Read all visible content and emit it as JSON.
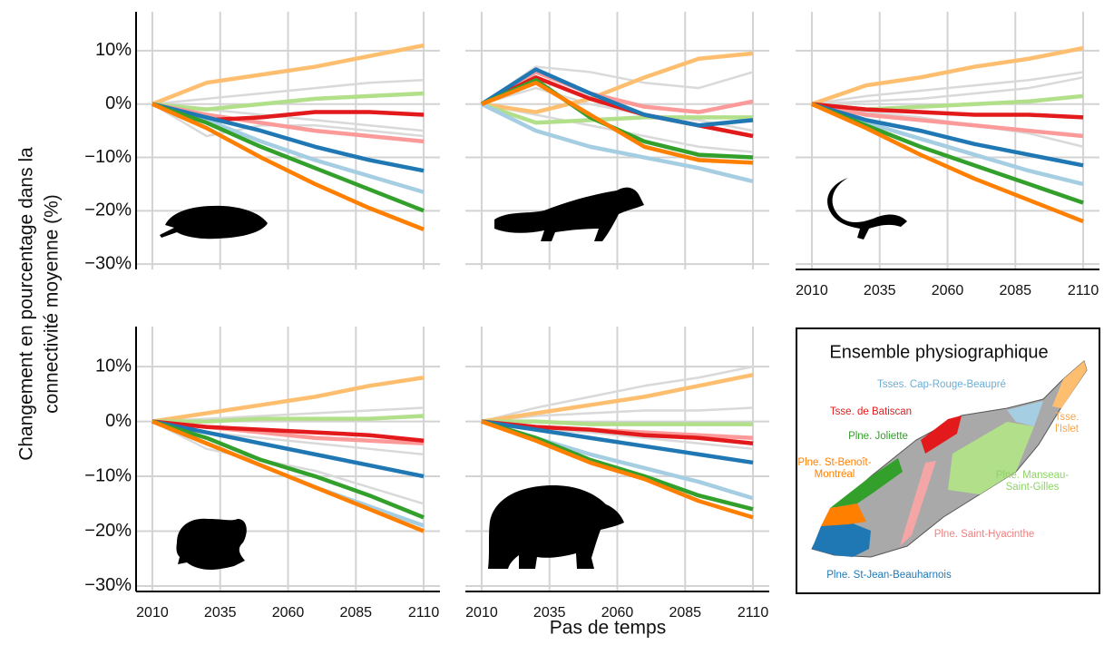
{
  "figure": {
    "ylabel": [
      "Changement en pourcentage dans la",
      "connectivité moyenne (%)"
    ],
    "xlabel": "Pas de temps"
  },
  "legend": {
    "title": "Ensemble physiographique",
    "entries": [
      {
        "name": [
          "Tsses. Cap-Rouge-Beaupré"
        ],
        "color": "#6baed6"
      },
      {
        "name": [
          "Tsse. de Batiscan"
        ],
        "color": "#e31a1c"
      },
      {
        "name": [
          "Tsse.",
          "l'Islet"
        ],
        "color": "#f5a64a"
      },
      {
        "name": [
          "Plne. Joliette"
        ],
        "color": "#33a02c"
      },
      {
        "name": [
          "Plne. St-Benoît-",
          "Montréal"
        ],
        "color": "#ff7f00"
      },
      {
        "name": [
          "Plne. Manseau-",
          "Saint-Gilles"
        ],
        "color": "#8fd36a"
      },
      {
        "name": [
          "Plne. Saint-Hyacinthe"
        ],
        "color": "#f08080"
      },
      {
        "name": [
          "Plne. St-Jean-Beauharnois"
        ],
        "color": "#1f78b4"
      }
    ]
  },
  "chart_data": [
    {
      "type": "line",
      "x": [
        2010,
        2030,
        2050,
        2070,
        2090,
        2110
      ],
      "xlim": [
        2004,
        2116
      ],
      "ylim": [
        -31,
        17.3
      ],
      "xticks": [
        2010,
        2035,
        2060,
        2085,
        2110
      ],
      "yticks": [
        {
          "value": -30,
          "label": "−30%"
        },
        {
          "value": -20,
          "label": "−20%"
        },
        {
          "value": -10,
          "label": "−10%"
        },
        {
          "value": 0,
          "label": "0%"
        },
        {
          "value": 10,
          "label": "10%"
        }
      ],
      "grid": true,
      "show_xtick_labels": false,
      "show_ytick_labels": true,
      "series": [
        {
          "color": "#d9d9d9",
          "values": [
            0,
            1,
            2,
            3,
            4,
            4.5
          ]
        },
        {
          "color": "#d9d9d9",
          "values": [
            0,
            -1,
            -2,
            -3,
            -4,
            -5
          ]
        },
        {
          "color": "#d9d9d9",
          "values": [
            0,
            -6,
            -4,
            -4,
            -5,
            -6
          ]
        },
        {
          "color": "#fdbf6f",
          "values": [
            0,
            4,
            5.5,
            7,
            9,
            11
          ]
        },
        {
          "color": "#b2df8a",
          "values": [
            0,
            -1,
            0,
            1,
            1.5,
            2
          ]
        },
        {
          "color": "#fb9a99",
          "values": [
            0,
            -2,
            -3.5,
            -5,
            -6,
            -7
          ]
        },
        {
          "color": "#e31a1c",
          "values": [
            0,
            -3,
            -2.5,
            -1.5,
            -1.5,
            -2
          ]
        },
        {
          "color": "#a6cee3",
          "values": [
            0,
            -3,
            -7,
            -10.5,
            -13.5,
            -16.5
          ]
        },
        {
          "color": "#1f78b4",
          "values": [
            0,
            -2.5,
            -5,
            -8,
            -10.5,
            -12.5
          ]
        },
        {
          "color": "#33a02c",
          "values": [
            0,
            -3.5,
            -8,
            -12,
            -16,
            -20
          ]
        },
        {
          "color": "#ff7f00",
          "values": [
            0,
            -4.5,
            -10,
            -15,
            -19.5,
            -23.5
          ]
        }
      ]
    },
    {
      "type": "line",
      "x": [
        2010,
        2030,
        2050,
        2070,
        2090,
        2110
      ],
      "xlim": [
        2004,
        2116
      ],
      "ylim": [
        -31,
        17.3
      ],
      "xticks": [
        2010,
        2035,
        2060,
        2085,
        2110
      ],
      "yticks": [
        {
          "value": -30,
          "label": "−30%"
        },
        {
          "value": -20,
          "label": "−20%"
        },
        {
          "value": -10,
          "label": "−10%"
        },
        {
          "value": 0,
          "label": "0%"
        },
        {
          "value": 10,
          "label": "10%"
        }
      ],
      "grid": true,
      "show_xtick_labels": false,
      "show_ytick_labels": false,
      "series": [
        {
          "color": "#d9d9d9",
          "values": [
            0,
            7,
            6,
            4,
            3,
            6
          ]
        },
        {
          "color": "#d9d9d9",
          "values": [
            0,
            3,
            0,
            -2,
            -3,
            -5
          ]
        },
        {
          "color": "#d9d9d9",
          "values": [
            0,
            -2,
            -4,
            -6,
            -8,
            -9
          ]
        },
        {
          "color": "#fdbf6f",
          "values": [
            0,
            -1.5,
            1,
            5,
            8.5,
            9.5
          ]
        },
        {
          "color": "#b2df8a",
          "values": [
            0,
            -3.5,
            -3,
            -2.5,
            -2.5,
            -2.5
          ]
        },
        {
          "color": "#fb9a99",
          "values": [
            0,
            6,
            2,
            -0.5,
            -1.5,
            0.5
          ]
        },
        {
          "color": "#e31a1c",
          "values": [
            0,
            5,
            1,
            -2,
            -4,
            -6
          ]
        },
        {
          "color": "#a6cee3",
          "values": [
            0,
            -5,
            -8,
            -10,
            -12,
            -14.5
          ]
        },
        {
          "color": "#1f78b4",
          "values": [
            0,
            6.5,
            2,
            -2,
            -4,
            -3
          ]
        },
        {
          "color": "#33a02c",
          "values": [
            0,
            4.5,
            -2.5,
            -7,
            -9.5,
            -10
          ]
        },
        {
          "color": "#ff7f00",
          "values": [
            0,
            4,
            -2,
            -8,
            -10.5,
            -11
          ]
        }
      ]
    },
    {
      "type": "line",
      "x": [
        2010,
        2030,
        2050,
        2070,
        2090,
        2110
      ],
      "xlim": [
        2004,
        2116
      ],
      "ylim": [
        -31,
        17.3
      ],
      "xticks": [
        2010,
        2035,
        2060,
        2085,
        2110
      ],
      "yticks": [
        {
          "value": -30,
          "label": "−30%"
        },
        {
          "value": -20,
          "label": "−20%"
        },
        {
          "value": -10,
          "label": "−10%"
        },
        {
          "value": 0,
          "label": "0%"
        },
        {
          "value": 10,
          "label": "10%"
        }
      ],
      "grid": true,
      "show_xtick_labels": true,
      "show_ytick_labels": false,
      "series": [
        {
          "color": "#d9d9d9",
          "values": [
            0,
            1.5,
            2.5,
            3.5,
            4.5,
            6
          ]
        },
        {
          "color": "#d9d9d9",
          "values": [
            0,
            -1.5,
            -2.5,
            -4,
            -5.5,
            -8
          ]
        },
        {
          "color": "#d9d9d9",
          "values": [
            0,
            0.5,
            1,
            2,
            3,
            5
          ]
        },
        {
          "color": "#fdbf6f",
          "values": [
            0,
            3.5,
            5,
            7,
            8.5,
            10.5
          ]
        },
        {
          "color": "#b2df8a",
          "values": [
            0,
            -1,
            -0.5,
            0,
            0.5,
            1.5
          ]
        },
        {
          "color": "#fb9a99",
          "values": [
            0,
            -2,
            -3,
            -4,
            -5,
            -6
          ]
        },
        {
          "color": "#e31a1c",
          "values": [
            0,
            -1,
            -1.5,
            -2,
            -2,
            -2.5
          ]
        },
        {
          "color": "#a6cee3",
          "values": [
            0,
            -3.5,
            -6.5,
            -9.5,
            -12.5,
            -15
          ]
        },
        {
          "color": "#1f78b4",
          "values": [
            0,
            -3,
            -5,
            -7.5,
            -9.5,
            -11.5
          ]
        },
        {
          "color": "#33a02c",
          "values": [
            0,
            -4,
            -8,
            -11.5,
            -15,
            -18.5
          ]
        },
        {
          "color": "#ff7f00",
          "values": [
            0,
            -4.5,
            -9.5,
            -14,
            -18,
            -22
          ]
        }
      ]
    },
    {
      "type": "line",
      "x": [
        2010,
        2030,
        2050,
        2070,
        2090,
        2110
      ],
      "xlim": [
        2004,
        2116
      ],
      "ylim": [
        -31,
        17.3
      ],
      "xticks": [
        2010,
        2035,
        2060,
        2085,
        2110
      ],
      "yticks": [
        {
          "value": -30,
          "label": "−30%"
        },
        {
          "value": -20,
          "label": "−20%"
        },
        {
          "value": -10,
          "label": "−10%"
        },
        {
          "value": 0,
          "label": "0%"
        },
        {
          "value": 10,
          "label": "10%"
        }
      ],
      "grid": true,
      "show_xtick_labels": true,
      "show_ytick_labels": true,
      "series": [
        {
          "color": "#d9d9d9",
          "values": [
            0,
            0.5,
            1,
            1.5,
            2,
            2.5
          ]
        },
        {
          "color": "#d9d9d9",
          "values": [
            0,
            -2,
            -3,
            -4,
            -5,
            -6
          ]
        },
        {
          "color": "#d9d9d9",
          "values": [
            0,
            -5,
            -7,
            -9,
            -12,
            -15
          ]
        },
        {
          "color": "#fdbf6f",
          "values": [
            0,
            1.5,
            3,
            4.5,
            6.5,
            8
          ]
        },
        {
          "color": "#b2df8a",
          "values": [
            0,
            0,
            0.5,
            0.5,
            0.5,
            1
          ]
        },
        {
          "color": "#fb9a99",
          "values": [
            0,
            -1,
            -2,
            -3,
            -3.5,
            -4
          ]
        },
        {
          "color": "#e31a1c",
          "values": [
            0,
            -1,
            -1.5,
            -2,
            -2.5,
            -3.5
          ]
        },
        {
          "color": "#a6cee3",
          "values": [
            0,
            -4,
            -8,
            -12,
            -15.5,
            -19
          ]
        },
        {
          "color": "#1f78b4",
          "values": [
            0,
            -2,
            -4,
            -6,
            -8,
            -10
          ]
        },
        {
          "color": "#33a02c",
          "values": [
            0,
            -3,
            -7,
            -10,
            -13.5,
            -17.5
          ]
        },
        {
          "color": "#ff7f00",
          "values": [
            0,
            -4,
            -8,
            -12,
            -16,
            -20
          ]
        }
      ]
    },
    {
      "type": "line",
      "x": [
        2010,
        2030,
        2050,
        2070,
        2090,
        2110
      ],
      "xlim": [
        2004,
        2116
      ],
      "ylim": [
        -31,
        17.3
      ],
      "xticks": [
        2010,
        2035,
        2060,
        2085,
        2110
      ],
      "yticks": [
        {
          "value": -30,
          "label": "−30%"
        },
        {
          "value": -20,
          "label": "−20%"
        },
        {
          "value": -10,
          "label": "−10%"
        },
        {
          "value": 0,
          "label": "0%"
        },
        {
          "value": 10,
          "label": "10%"
        }
      ],
      "grid": true,
      "show_xtick_labels": true,
      "show_ytick_labels": false,
      "series": [
        {
          "color": "#d9d9d9",
          "values": [
            0,
            2.5,
            4.5,
            6.5,
            8,
            10
          ]
        },
        {
          "color": "#d9d9d9",
          "values": [
            0,
            1,
            1.5,
            2,
            2,
            2.5
          ]
        },
        {
          "color": "#d9d9d9",
          "values": [
            0,
            -1.5,
            -2,
            -3,
            -4,
            -5
          ]
        },
        {
          "color": "#fdbf6f",
          "values": [
            0,
            1.5,
            3,
            4.5,
            6.5,
            8.5
          ]
        },
        {
          "color": "#b2df8a",
          "values": [
            0,
            0,
            -0.5,
            -0.5,
            -0.5,
            -0.5
          ]
        },
        {
          "color": "#fb9a99",
          "values": [
            0,
            -1,
            -1.5,
            -2,
            -2.5,
            -3
          ]
        },
        {
          "color": "#e31a1c",
          "values": [
            0,
            -1,
            -1.5,
            -2.5,
            -3,
            -4
          ]
        },
        {
          "color": "#a6cee3",
          "values": [
            0,
            -3,
            -6,
            -8.5,
            -11,
            -14
          ]
        },
        {
          "color": "#1f78b4",
          "values": [
            0,
            -1.5,
            -3,
            -4.5,
            -6,
            -7.5
          ]
        },
        {
          "color": "#33a02c",
          "values": [
            0,
            -3,
            -7,
            -10,
            -13.5,
            -16
          ]
        },
        {
          "color": "#ff7f00",
          "values": [
            0,
            -3.5,
            -7.5,
            -10.5,
            -14.5,
            -17.5
          ]
        }
      ]
    }
  ]
}
